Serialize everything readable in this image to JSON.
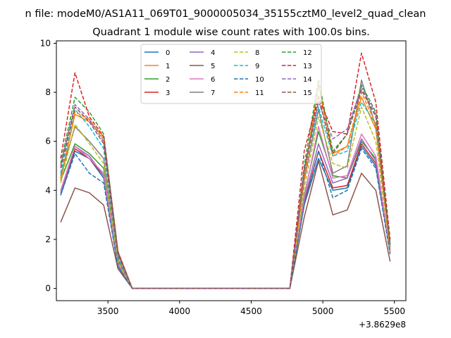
{
  "chart_data": {
    "type": "line",
    "suptitle": "n file: modeM0/AS1A11_069T01_9000005034_35155cztM0_level2_quad_clean",
    "title": "Quadrant 1 module wise count rates with 100.0s bins.",
    "xlabel": "",
    "ylabel": "",
    "x_offset_label": "+3.8629e8",
    "xlim": [
      3140,
      5580
    ],
    "ylim": [
      -0.5,
      10.1
    ],
    "xticks": [
      3500,
      4000,
      4500,
      5000,
      5500
    ],
    "xtick_labels": [
      "3500",
      "4000",
      "4500",
      "5000",
      "5500"
    ],
    "yticks": [
      0,
      2,
      4,
      6,
      8,
      10
    ],
    "ytick_labels": [
      "0",
      "2",
      "4",
      "6",
      "8",
      "10"
    ],
    "legend_position": "top-center",
    "x": [
      3170,
      3270,
      3370,
      3470,
      3570,
      3670,
      3770,
      3870,
      3970,
      4070,
      4170,
      4270,
      4370,
      4470,
      4570,
      4670,
      4770,
      4870,
      4970,
      5070,
      5170,
      5270,
      5370,
      5470
    ],
    "series": [
      {
        "name": "0",
        "color": "#1f77b4",
        "dashed": false,
        "values": [
          3.8,
          5.6,
          5.3,
          4.5,
          0.9,
          0,
          0,
          0,
          0,
          0,
          0,
          0,
          0,
          0,
          0,
          0,
          0,
          3.4,
          5.3,
          4.0,
          4.1,
          5.8,
          5.0,
          1.5
        ]
      },
      {
        "name": "1",
        "color": "#ff7f0e",
        "dashed": false,
        "values": [
          4.5,
          7.1,
          6.8,
          6.2,
          1.5,
          0,
          0,
          0,
          0,
          0,
          0,
          0,
          0,
          0,
          0,
          0,
          0,
          4.6,
          8.3,
          5.5,
          5.8,
          7.8,
          6.5,
          1.7
        ]
      },
      {
        "name": "2",
        "color": "#2ca02c",
        "dashed": false,
        "values": [
          4.4,
          5.9,
          5.5,
          4.9,
          1.1,
          0,
          0,
          0,
          0,
          0,
          0,
          0,
          0,
          0,
          0,
          0,
          0,
          3.8,
          6.4,
          4.6,
          4.5,
          6.0,
          5.3,
          1.5
        ]
      },
      {
        "name": "3",
        "color": "#d62728",
        "dashed": false,
        "values": [
          3.9,
          5.7,
          5.3,
          4.6,
          1.0,
          0,
          0,
          0,
          0,
          0,
          0,
          0,
          0,
          0,
          0,
          0,
          0,
          3.5,
          5.6,
          4.1,
          4.2,
          5.9,
          5.1,
          1.5
        ]
      },
      {
        "name": "4",
        "color": "#9467bd",
        "dashed": false,
        "values": [
          3.9,
          5.8,
          5.4,
          4.6,
          1.0,
          0,
          0,
          0,
          0,
          0,
          0,
          0,
          0,
          0,
          0,
          0,
          0,
          3.6,
          5.9,
          4.3,
          4.5,
          6.1,
          5.2,
          1.5
        ]
      },
      {
        "name": "5",
        "color": "#8c564b",
        "dashed": false,
        "values": [
          2.7,
          4.1,
          3.9,
          3.4,
          0.8,
          0,
          0,
          0,
          0,
          0,
          0,
          0,
          0,
          0,
          0,
          0,
          0,
          2.9,
          5.2,
          3.0,
          3.2,
          4.7,
          4.0,
          1.1
        ]
      },
      {
        "name": "6",
        "color": "#e377c2",
        "dashed": false,
        "values": [
          4.0,
          5.8,
          5.3,
          4.7,
          1.0,
          0,
          0,
          0,
          0,
          0,
          0,
          0,
          0,
          0,
          0,
          0,
          0,
          3.7,
          6.6,
          4.5,
          4.6,
          6.3,
          5.4,
          1.5
        ]
      },
      {
        "name": "7",
        "color": "#7f7f7f",
        "dashed": false,
        "values": [
          4.6,
          6.6,
          6.0,
          5.3,
          1.2,
          0,
          0,
          0,
          0,
          0,
          0,
          0,
          0,
          0,
          0,
          0,
          0,
          4.4,
          7.3,
          4.7,
          5.0,
          8.5,
          6.6,
          1.7
        ]
      },
      {
        "name": "8",
        "color": "#bcbd22",
        "dashed": true,
        "values": [
          4.3,
          6.7,
          5.9,
          5.1,
          1.1,
          0,
          0,
          0,
          0,
          0,
          0,
          0,
          0,
          0,
          0,
          0,
          0,
          4.1,
          7.0,
          5.1,
          4.9,
          7.4,
          6.0,
          1.6
        ]
      },
      {
        "name": "9",
        "color": "#17becf",
        "dashed": true,
        "values": [
          4.7,
          7.3,
          6.6,
          5.7,
          1.3,
          0,
          0,
          0,
          0,
          0,
          0,
          0,
          0,
          0,
          0,
          0,
          0,
          4.7,
          7.4,
          5.4,
          5.6,
          7.6,
          6.7,
          1.7
        ]
      },
      {
        "name": "10",
        "color": "#1f77b4",
        "dashed": true,
        "values": [
          3.8,
          5.5,
          4.7,
          4.3,
          0.9,
          0,
          0,
          0,
          0,
          0,
          0,
          0,
          0,
          0,
          0,
          0,
          0,
          3.4,
          5.6,
          3.7,
          4.0,
          5.7,
          4.9,
          1.4
        ]
      },
      {
        "name": "11",
        "color": "#ff7f0e",
        "dashed": true,
        "values": [
          4.4,
          7.2,
          6.9,
          6.1,
          1.4,
          0,
          0,
          0,
          0,
          0,
          0,
          0,
          0,
          0,
          0,
          0,
          0,
          4.5,
          7.9,
          5.4,
          5.8,
          8.0,
          6.7,
          1.6
        ]
      },
      {
        "name": "12",
        "color": "#2ca02c",
        "dashed": true,
        "values": [
          5.1,
          7.8,
          7.2,
          6.3,
          1.5,
          0,
          0,
          0,
          0,
          0,
          0,
          0,
          0,
          0,
          0,
          0,
          0,
          5.0,
          8.5,
          5.6,
          6.3,
          8.3,
          7.2,
          1.8
        ]
      },
      {
        "name": "13",
        "color": "#d62728",
        "dashed": true,
        "values": [
          5.3,
          8.8,
          7.0,
          6.2,
          1.5,
          0,
          0,
          0,
          0,
          0,
          0,
          0,
          0,
          0,
          0,
          0,
          0,
          5.6,
          7.8,
          6.4,
          6.3,
          9.6,
          7.6,
          2.0
        ]
      },
      {
        "name": "14",
        "color": "#9467bd",
        "dashed": true,
        "values": [
          5.0,
          7.5,
          6.9,
          6.0,
          1.4,
          0,
          0,
          0,
          0,
          0,
          0,
          0,
          0,
          0,
          0,
          0,
          0,
          4.9,
          7.6,
          6.1,
          6.5,
          8.2,
          7.1,
          1.8
        ]
      },
      {
        "name": "15",
        "color": "#8c564b",
        "dashed": true,
        "values": [
          4.9,
          7.4,
          6.8,
          5.9,
          1.4,
          0,
          0,
          0,
          0,
          0,
          0,
          0,
          0,
          0,
          0,
          0,
          0,
          4.8,
          7.8,
          5.5,
          6.3,
          8.1,
          7.0,
          1.8
        ]
      }
    ]
  }
}
